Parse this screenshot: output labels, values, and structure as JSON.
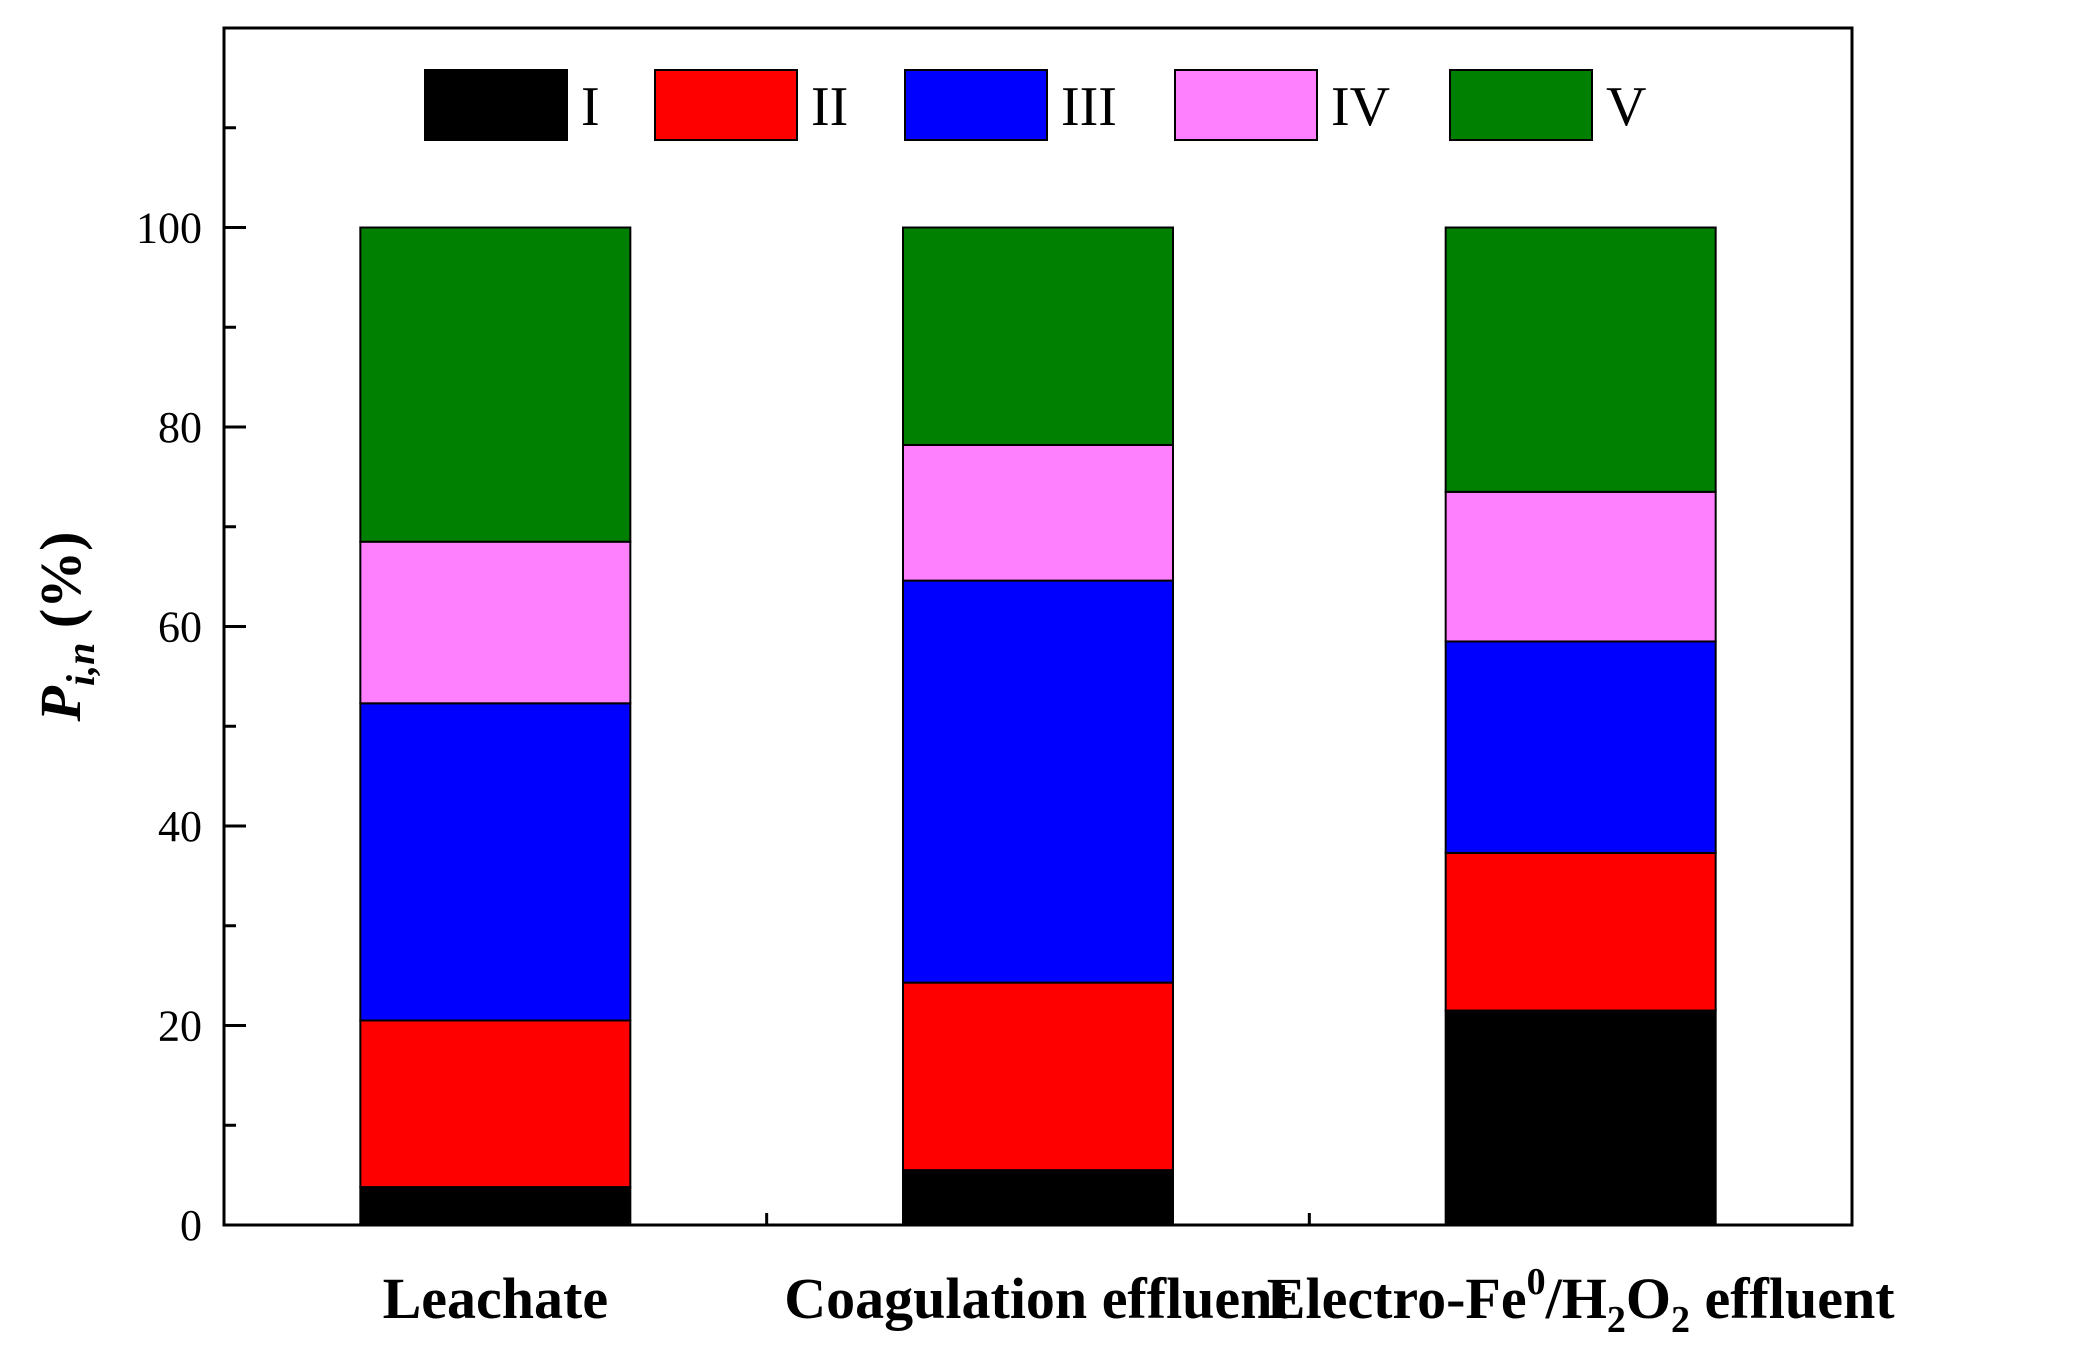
{
  "chart_data": {
    "type": "bar",
    "stacked": true,
    "categories": [
      "Leachate",
      "Coagulation effluent",
      "Electro-Fe0/H2O2 effluent"
    ],
    "category_labels": [
      {
        "main": "Leachate"
      },
      {
        "main": "Coagulation effluent"
      },
      {
        "part1": "Electro-Fe",
        "sup": "0",
        "part2": "/H",
        "sub1": "2",
        "part3": "O",
        "sub2": "2",
        "part4": " effluent"
      }
    ],
    "series": [
      {
        "name": "I",
        "color": "#000000",
        "values": [
          3.8,
          5.5,
          21.5
        ]
      },
      {
        "name": "II",
        "color": "#ff0000",
        "values": [
          16.7,
          18.8,
          15.8
        ]
      },
      {
        "name": "III",
        "color": "#0000ff",
        "values": [
          31.8,
          40.3,
          21.2
        ]
      },
      {
        "name": "IV",
        "color": "#ff80ff",
        "values": [
          16.2,
          13.6,
          15.0
        ]
      },
      {
        "name": "V",
        "color": "#008000",
        "values": [
          31.5,
          21.8,
          26.5
        ]
      }
    ],
    "ylabel": {
      "main": "P",
      "sub": "i,n",
      "unit": " (%)"
    },
    "ylim": [
      0,
      120
    ],
    "yticks": [
      0,
      20,
      40,
      60,
      80,
      100
    ],
    "minor_tick_step": 10,
    "grid": false,
    "legend": {
      "placement": "top",
      "orientation": "horizontal"
    }
  }
}
